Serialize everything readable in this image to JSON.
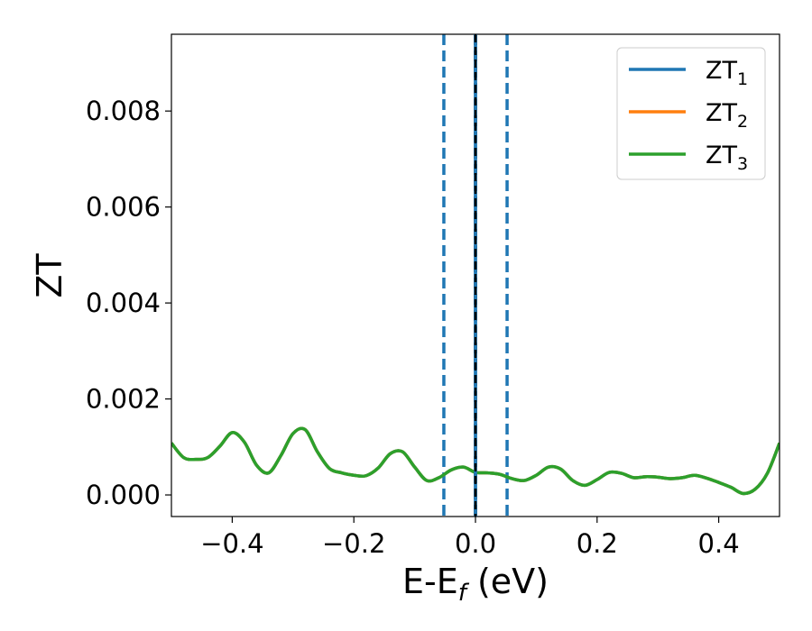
{
  "chart_data": {
    "type": "line",
    "xlabel_main": "E-E",
    "xlabel_sub": "f",
    "xlabel_tail": " (eV)",
    "ylabel": "ZT",
    "xlim": [
      -0.5,
      0.5
    ],
    "ylim": [
      -0.00045,
      0.0096
    ],
    "xticks": [
      {
        "value": -0.4,
        "label": "−0.4"
      },
      {
        "value": -0.2,
        "label": "−0.2"
      },
      {
        "value": 0.0,
        "label": "0.0"
      },
      {
        "value": 0.2,
        "label": "0.2"
      },
      {
        "value": 0.4,
        "label": "0.4"
      }
    ],
    "yticks": [
      {
        "value": 0.0,
        "label": "0.000"
      },
      {
        "value": 0.002,
        "label": "0.002"
      },
      {
        "value": 0.004,
        "label": "0.004"
      },
      {
        "value": 0.006,
        "label": "0.006"
      },
      {
        "value": 0.008,
        "label": "0.008"
      }
    ],
    "grid": false,
    "legend_position": "top-right",
    "vlines": [
      {
        "x": -0.052,
        "style": "dashed",
        "color": "#1f77b4"
      },
      {
        "x": 0.052,
        "style": "dashed",
        "color": "#1f77b4"
      },
      {
        "x": 0.0,
        "style": "solid",
        "color": "#1f77b4"
      },
      {
        "x": 0.0,
        "style": "dashed",
        "color": "#000000"
      }
    ],
    "series": [
      {
        "name": "ZT",
        "sub": "1",
        "color": "#1f77b4",
        "x": [
          -0.5,
          -0.48,
          -0.46,
          -0.44,
          -0.42,
          -0.4,
          -0.38,
          -0.36,
          -0.34,
          -0.32,
          -0.3,
          -0.28,
          -0.26,
          -0.24,
          -0.22,
          -0.2,
          -0.18,
          -0.16,
          -0.14,
          -0.12,
          -0.1,
          -0.08,
          -0.06,
          -0.04,
          -0.02,
          0.0,
          0.02,
          0.04,
          0.06,
          0.08,
          0.1,
          0.12,
          0.14,
          0.16,
          0.18,
          0.2,
          0.22,
          0.24,
          0.26,
          0.28,
          0.3,
          0.32,
          0.34,
          0.36,
          0.38,
          0.4,
          0.42,
          0.44,
          0.46,
          0.48,
          0.5
        ],
        "values": [
          0.00108,
          0.00078,
          0.00074,
          0.00078,
          0.00102,
          0.0013,
          0.0011,
          0.00062,
          0.00046,
          0.00082,
          0.00128,
          0.00136,
          0.0009,
          0.00055,
          0.00046,
          0.00041,
          0.0004,
          0.00056,
          0.00086,
          0.0009,
          0.00058,
          0.0003,
          0.00036,
          0.00052,
          0.00058,
          0.00047,
          0.00046,
          0.00043,
          0.00034,
          0.0003,
          0.00041,
          0.00058,
          0.00054,
          0.0003,
          0.0002,
          0.00032,
          0.00047,
          0.00045,
          0.00036,
          0.00038,
          0.00037,
          0.00034,
          0.00036,
          0.00041,
          0.00035,
          0.00026,
          0.00016,
          3e-05,
          0.00012,
          0.00045,
          0.00108
        ]
      },
      {
        "name": "ZT",
        "sub": "2",
        "color": "#ff7f0e",
        "x": [
          -0.5,
          -0.48,
          -0.46,
          -0.44,
          -0.42,
          -0.4,
          -0.38,
          -0.36,
          -0.34,
          -0.32,
          -0.3,
          -0.28,
          -0.26,
          -0.24,
          -0.22,
          -0.2,
          -0.18,
          -0.16,
          -0.14,
          -0.12,
          -0.1,
          -0.08,
          -0.06,
          -0.04,
          -0.02,
          0.0,
          0.02,
          0.04,
          0.06,
          0.08,
          0.1,
          0.12,
          0.14,
          0.16,
          0.18,
          0.2,
          0.22,
          0.24,
          0.26,
          0.28,
          0.3,
          0.32,
          0.34,
          0.36,
          0.38,
          0.4,
          0.42,
          0.44,
          0.46,
          0.48,
          0.5
        ],
        "values": [
          0.00108,
          0.00078,
          0.00074,
          0.00078,
          0.00102,
          0.0013,
          0.0011,
          0.00062,
          0.00046,
          0.00082,
          0.00128,
          0.00136,
          0.0009,
          0.00055,
          0.00046,
          0.00041,
          0.0004,
          0.00056,
          0.00086,
          0.0009,
          0.00058,
          0.0003,
          0.00036,
          0.00052,
          0.00058,
          0.00047,
          0.00046,
          0.00043,
          0.00034,
          0.0003,
          0.00041,
          0.00058,
          0.00054,
          0.0003,
          0.0002,
          0.00032,
          0.00047,
          0.00045,
          0.00036,
          0.00038,
          0.00037,
          0.00034,
          0.00036,
          0.00041,
          0.00035,
          0.00026,
          0.00016,
          3e-05,
          0.00012,
          0.00045,
          0.00108
        ]
      },
      {
        "name": "ZT",
        "sub": "3",
        "color": "#2ca02c",
        "x": [
          -0.5,
          -0.48,
          -0.46,
          -0.44,
          -0.42,
          -0.4,
          -0.38,
          -0.36,
          -0.34,
          -0.32,
          -0.3,
          -0.28,
          -0.26,
          -0.24,
          -0.22,
          -0.2,
          -0.18,
          -0.16,
          -0.14,
          -0.12,
          -0.1,
          -0.08,
          -0.06,
          -0.04,
          -0.02,
          0.0,
          0.02,
          0.04,
          0.06,
          0.08,
          0.1,
          0.12,
          0.14,
          0.16,
          0.18,
          0.2,
          0.22,
          0.24,
          0.26,
          0.28,
          0.3,
          0.32,
          0.34,
          0.36,
          0.38,
          0.4,
          0.42,
          0.44,
          0.46,
          0.48,
          0.5
        ],
        "values": [
          0.00108,
          0.00078,
          0.00074,
          0.00078,
          0.00102,
          0.0013,
          0.0011,
          0.00062,
          0.00046,
          0.00082,
          0.00128,
          0.00136,
          0.0009,
          0.00055,
          0.00046,
          0.00041,
          0.0004,
          0.00056,
          0.00086,
          0.0009,
          0.00058,
          0.0003,
          0.00036,
          0.00052,
          0.00058,
          0.00047,
          0.00046,
          0.00043,
          0.00034,
          0.0003,
          0.00041,
          0.00058,
          0.00054,
          0.0003,
          0.0002,
          0.00032,
          0.00047,
          0.00045,
          0.00036,
          0.00038,
          0.00037,
          0.00034,
          0.00036,
          0.00041,
          0.00035,
          0.00026,
          0.00016,
          3e-05,
          0.00012,
          0.00045,
          0.00108
        ]
      }
    ]
  }
}
